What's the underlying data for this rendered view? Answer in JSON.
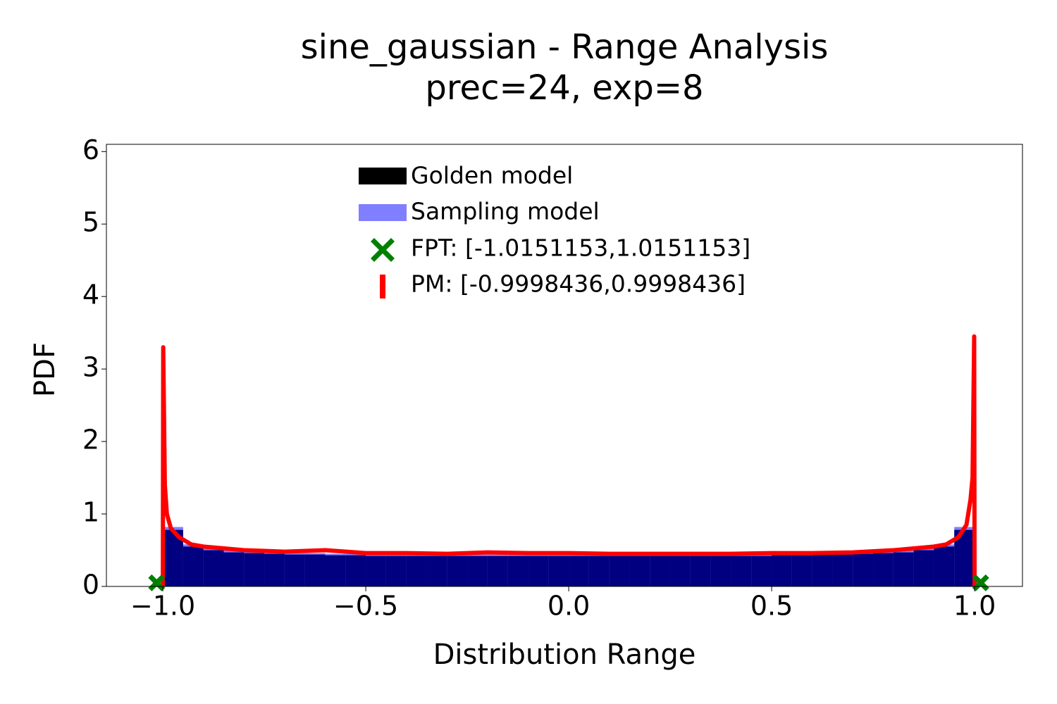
{
  "chart_data": {
    "type": "histogram",
    "title": "sine_gaussian - Range Analysis",
    "subtitle": "prec=24, exp=8",
    "xlabel": "Distribution Range",
    "ylabel": "PDF",
    "xlim": [
      -1.139,
      1.118
    ],
    "ylim": [
      0,
      6.1
    ],
    "xticks": [
      {
        "value": -1,
        "label": "−1.0"
      },
      {
        "value": -0.5,
        "label": "−0.5"
      },
      {
        "value": 0,
        "label": "0.0"
      },
      {
        "value": 0.5,
        "label": "0.5"
      },
      {
        "value": 1,
        "label": "1.0"
      }
    ],
    "yticks": [
      0,
      1,
      2,
      3,
      4,
      5,
      6
    ],
    "bins": [
      -1,
      -0.95,
      -0.9,
      -0.85,
      -0.8,
      -0.75,
      -0.7,
      -0.65,
      -0.6,
      -0.55,
      -0.5,
      -0.45,
      -0.4,
      -0.35,
      -0.3,
      -0.25,
      -0.2,
      -0.15,
      -0.1,
      -0.05,
      0,
      0.05,
      0.1,
      0.15,
      0.2,
      0.25,
      0.3,
      0.35,
      0.4,
      0.45,
      0.5,
      0.55,
      0.6,
      0.65,
      0.7,
      0.75,
      0.8,
      0.85,
      0.9,
      0.95,
      1
    ],
    "series": [
      {
        "name": "Golden model",
        "color": "#000000",
        "values": [
          0.78,
          0.55,
          0.5,
          0.47,
          0.46,
          0.45,
          0.44,
          0.44,
          0.43,
          0.43,
          0.42,
          0.42,
          0.42,
          0.42,
          0.42,
          0.42,
          0.42,
          0.42,
          0.42,
          0.42,
          0.42,
          0.42,
          0.42,
          0.42,
          0.42,
          0.42,
          0.42,
          0.42,
          0.42,
          0.42,
          0.43,
          0.43,
          0.44,
          0.44,
          0.45,
          0.46,
          0.47,
          0.5,
          0.55,
          0.78
        ]
      },
      {
        "name": "Sampling model",
        "color": "#0000ff",
        "values": [
          0.82,
          0.58,
          0.53,
          0.5,
          0.48,
          0.47,
          0.46,
          0.46,
          0.45,
          0.45,
          0.44,
          0.44,
          0.44,
          0.44,
          0.44,
          0.44,
          0.44,
          0.44,
          0.44,
          0.44,
          0.44,
          0.44,
          0.44,
          0.44,
          0.44,
          0.44,
          0.44,
          0.44,
          0.44,
          0.44,
          0.45,
          0.45,
          0.46,
          0.46,
          0.47,
          0.48,
          0.5,
          0.53,
          0.58,
          0.82
        ]
      }
    ],
    "markers": {
      "name": "FPT: [-1.0151153,1.0151153]",
      "color": "#008000",
      "x": [
        -1.0151153,
        1.0151153
      ],
      "values": [
        0.05,
        0.05
      ]
    },
    "line": {
      "name": "PM: [-0.9998436,0.9998436]",
      "color": "#ff0000",
      "x": [
        -1.0,
        -0.999,
        -0.995,
        -0.99,
        -0.98,
        -0.96,
        -0.93,
        -0.9,
        -0.8,
        -0.7,
        -0.6,
        -0.5,
        -0.4,
        -0.3,
        -0.2,
        -0.1,
        0,
        0.1,
        0.2,
        0.3,
        0.4,
        0.5,
        0.6,
        0.7,
        0.8,
        0.9,
        0.93,
        0.96,
        0.98,
        0.99,
        0.995,
        0.999,
        1.0
      ],
      "values": [
        0,
        3.3,
        1.4,
        1.0,
        0.8,
        0.68,
        0.58,
        0.55,
        0.5,
        0.48,
        0.5,
        0.46,
        0.46,
        0.45,
        0.47,
        0.46,
        0.46,
        0.45,
        0.45,
        0.45,
        0.45,
        0.46,
        0.46,
        0.47,
        0.5,
        0.55,
        0.58,
        0.68,
        0.85,
        1.2,
        1.5,
        3.45,
        0
      ]
    }
  }
}
